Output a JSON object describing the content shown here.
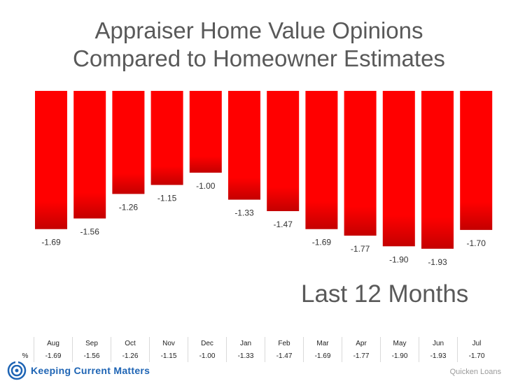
{
  "title_line1": "Appraiser Home Value Opinions",
  "title_line2": "Compared to Homeowner Estimates",
  "subtitle": "Last 12 Months",
  "table_row_label": "%",
  "logo_text": "Keeping Current Matters",
  "source": "Quicken Loans",
  "colors": {
    "bar": "#ff0000",
    "bar_dark": "#c40000",
    "text": "#595959"
  },
  "chart_data": {
    "type": "bar",
    "title": "Appraiser Home Value Opinions Compared to Homeowner Estimates",
    "subtitle": "Last 12 Months",
    "categories": [
      "Aug",
      "Sep",
      "Oct",
      "Nov",
      "Dec",
      "Jan",
      "Feb",
      "Mar",
      "Apr",
      "May",
      "Jun",
      "Jul"
    ],
    "values": [
      -1.69,
      -1.56,
      -1.26,
      -1.15,
      -1.0,
      -1.33,
      -1.47,
      -1.69,
      -1.77,
      -1.9,
      -1.93,
      -1.7
    ],
    "labels": [
      "-1.69",
      "-1.56",
      "-1.26",
      "-1.15",
      "-1.00",
      "-1.33",
      "-1.47",
      "-1.69",
      "-1.77",
      "-1.90",
      "-1.93",
      "-1.70"
    ],
    "ylim": [
      -2.0,
      0
    ],
    "grid": false,
    "legend": "none"
  }
}
